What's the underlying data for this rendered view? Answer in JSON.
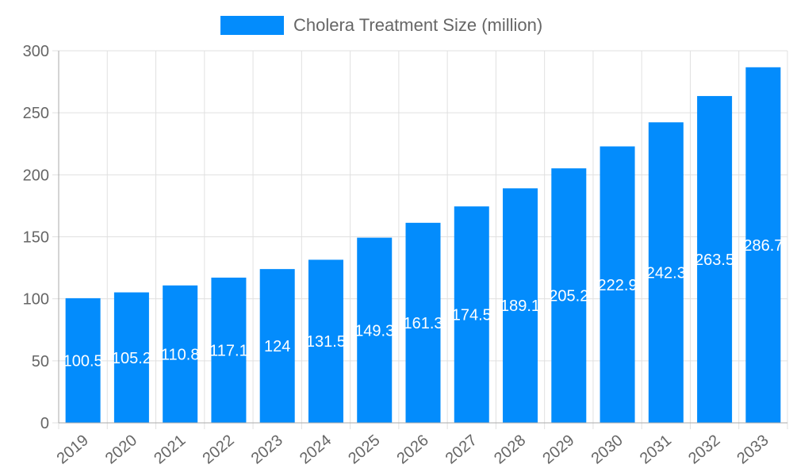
{
  "chart_data": {
    "type": "bar",
    "title": "",
    "xlabel": "",
    "ylabel": "",
    "legend": {
      "position": "top",
      "entries": [
        "Cholera Treatment Size (million)"
      ]
    },
    "categories": [
      "2019",
      "2020",
      "2021",
      "2022",
      "2023",
      "2024",
      "2025",
      "2026",
      "2027",
      "2028",
      "2029",
      "2030",
      "2031",
      "2032",
      "2033"
    ],
    "series": [
      {
        "name": "Cholera Treatment Size (million)",
        "color": "#038cfc",
        "values": [
          100.5,
          105.2,
          110.8,
          117.1,
          124,
          131.5,
          149.3,
          161.3,
          174.5,
          189.1,
          205.2,
          222.9,
          242.3,
          263.5,
          286.7
        ]
      }
    ],
    "data_labels": [
      "100.5",
      "105.2",
      "110.8",
      "117.1",
      "124",
      "131.5",
      "149.3",
      "161.3",
      "174.5",
      "189.1",
      "205.2",
      "222.9",
      "242.3",
      "263.5",
      "286.7"
    ],
    "ylim": [
      0,
      300
    ],
    "yticks": [
      0,
      50,
      100,
      150,
      200,
      250,
      300
    ],
    "grid": true
  }
}
